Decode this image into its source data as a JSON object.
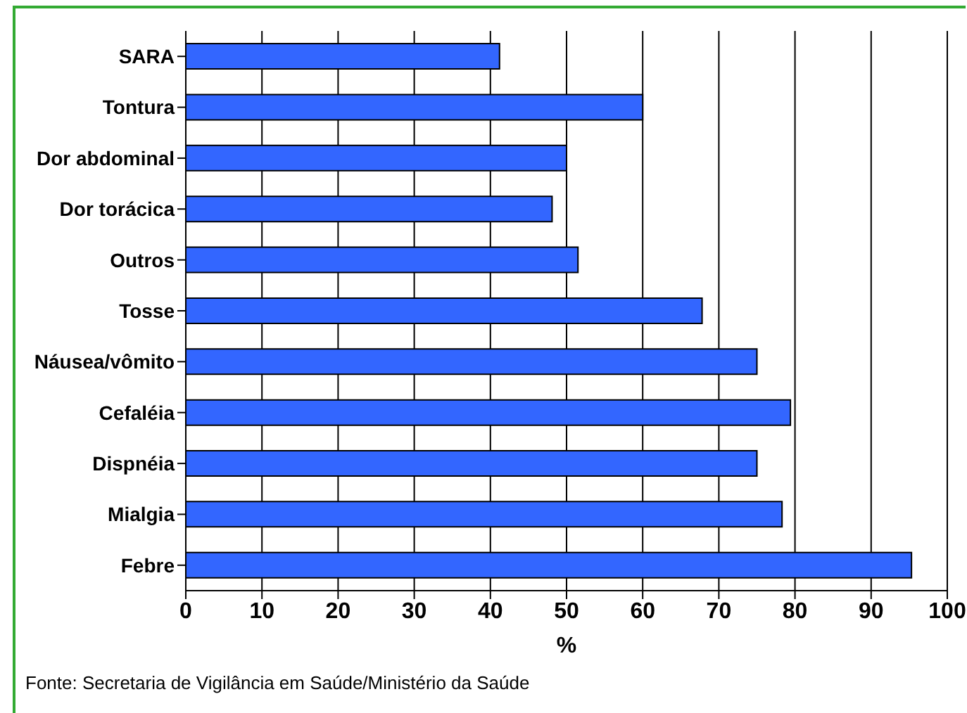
{
  "chart_data": {
    "type": "bar",
    "orientation": "horizontal",
    "categories": [
      "SARA",
      "Tontura",
      "Dor abdominal",
      "Dor torácica",
      "Outros",
      "Tosse",
      "Náusea/vômito",
      "Cefaléia",
      "Dispnéia",
      "Mialgia",
      "Febre"
    ],
    "values": [
      41.2,
      60,
      50,
      48.1,
      51.5,
      67.8,
      75,
      79.4,
      75,
      78.3,
      95.3
    ],
    "color": "#3366ff",
    "xlim": [
      0,
      100
    ],
    "xticks": [
      0,
      10,
      20,
      30,
      40,
      50,
      60,
      70,
      80,
      90,
      100
    ],
    "xlabel": "%",
    "grid": "x",
    "annotations": [
      "Fonte: Secretaria de Vigilância em Saúde/Ministério da Saúde"
    ]
  }
}
